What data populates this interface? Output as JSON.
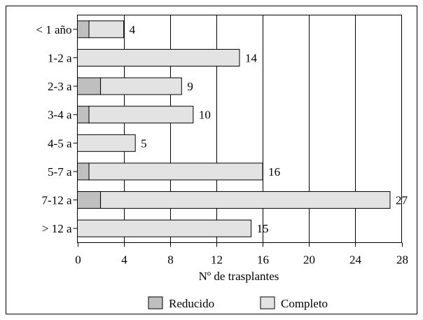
{
  "chart_data": {
    "type": "bar",
    "orientation": "horizontal",
    "stacked": true,
    "categories": [
      "< 1 año",
      "1-2 a",
      "2-3 a",
      "3-4 a",
      "4-5 a",
      "5-7 a",
      "7-12 a",
      "> 12 a"
    ],
    "series": [
      {
        "name": "Reducido",
        "values": [
          1,
          0,
          2,
          1,
          0,
          1,
          2,
          0
        ],
        "color": "#bfbfbf"
      },
      {
        "name": "Completo",
        "values": [
          3,
          14,
          7,
          9,
          5,
          15,
          25,
          15
        ],
        "color": "#e3e3e3"
      }
    ],
    "totals": [
      "4",
      "14",
      "9",
      "10",
      "5",
      "16",
      "27",
      "15"
    ],
    "xlabel": "Nº de trasplantes",
    "ylabel": "",
    "title": "",
    "xlim": [
      0,
      28
    ],
    "xticks": [
      0,
      4,
      8,
      12,
      16,
      20,
      24,
      28
    ],
    "grid": "vertical",
    "legend_position": "bottom"
  }
}
